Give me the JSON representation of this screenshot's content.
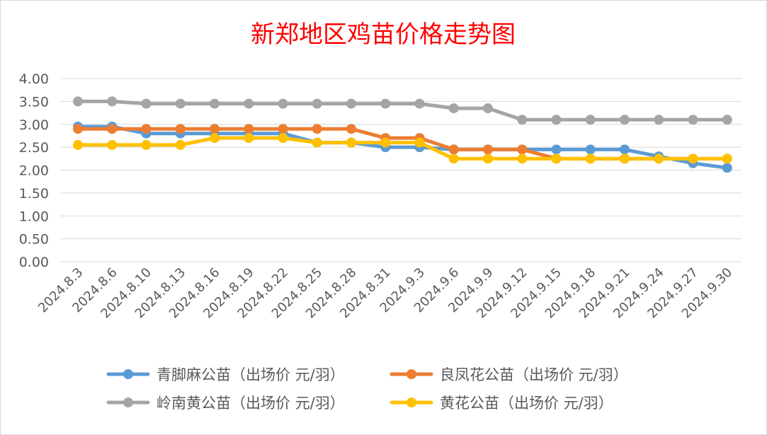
{
  "chart_data": {
    "type": "line",
    "title": "新郑地区鸡苗价格走势图",
    "xlabel": "",
    "ylabel": "",
    "ylim": [
      0,
      4
    ],
    "ytick_step": 0.5,
    "ytick_labels": [
      "0.00",
      "0.50",
      "1.00",
      "1.50",
      "2.00",
      "2.50",
      "3.00",
      "3.50",
      "4.00"
    ],
    "grid": true,
    "legend_position": "bottom",
    "categories": [
      "2024.8.3",
      "2024.8.6",
      "2024.8.10",
      "2024.8.13",
      "2024.8.16",
      "2024.8.19",
      "2024.8.22",
      "2024.8.25",
      "2024.8.28",
      "2024.8.31",
      "2024.9.3",
      "2024.9.6",
      "2024.9.9",
      "2024.9.12",
      "2024.9.15",
      "2024.9.18",
      "2024.9.21",
      "2024.9.24",
      "2024.9.27",
      "2024.9.30"
    ],
    "series": [
      {
        "name": "青脚麻公苗（出场价 元/羽）",
        "color": "#5B9BD5",
        "values": [
          2.95,
          2.95,
          2.8,
          2.8,
          2.8,
          2.8,
          2.8,
          2.6,
          2.6,
          2.5,
          2.5,
          2.45,
          2.45,
          2.45,
          2.45,
          2.45,
          2.45,
          2.3,
          2.15,
          2.05
        ]
      },
      {
        "name": "良凤花公苗（出场价 元/羽）",
        "color": "#ED7D31",
        "values": [
          2.9,
          2.9,
          2.9,
          2.9,
          2.9,
          2.9,
          2.9,
          2.9,
          2.9,
          2.7,
          2.7,
          2.45,
          2.45,
          2.45,
          2.25,
          2.25,
          2.25,
          2.25,
          2.25,
          2.25
        ]
      },
      {
        "name": "岭南黄公苗（出场价 元/羽）",
        "color": "#A5A5A5",
        "values": [
          3.5,
          3.5,
          3.45,
          3.45,
          3.45,
          3.45,
          3.45,
          3.45,
          3.45,
          3.45,
          3.45,
          3.35,
          3.35,
          3.1,
          3.1,
          3.1,
          3.1,
          3.1,
          3.1,
          3.1
        ]
      },
      {
        "name": "黄花公苗（出场价 元/羽）",
        "color": "#FFC000",
        "values": [
          2.55,
          2.55,
          2.55,
          2.55,
          2.7,
          2.7,
          2.7,
          2.6,
          2.6,
          2.6,
          2.6,
          2.25,
          2.25,
          2.25,
          2.25,
          2.25,
          2.25,
          2.25,
          2.25,
          2.25
        ]
      }
    ],
    "title_color": "#FF0000",
    "draw_order": [
      2,
      0,
      1,
      3
    ]
  }
}
